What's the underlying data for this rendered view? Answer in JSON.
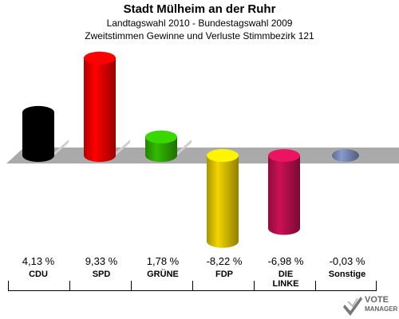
{
  "header": {
    "title": "Stadt Mülheim an der Ruhr",
    "subtitle1": "Landtagswahl 2010 - Bundestagswahl 2009",
    "subtitle2": "Zweitstimmen Gewinne und Verluste Stimmbezirk 121"
  },
  "chart_data": {
    "type": "bar",
    "categories": [
      "CDU",
      "SPD",
      "GRÜNE",
      "FDP",
      "DIE LINKE",
      "Sonstige"
    ],
    "values": [
      4.13,
      9.33,
      1.78,
      -8.22,
      -6.98,
      -0.03
    ],
    "value_labels": [
      "4,13 %",
      "9,33 %",
      "1,78 %",
      "-8,22 %",
      "-6,98 %",
      "-0,03 %"
    ],
    "colors": [
      "#000000",
      "#ff0000",
      "#33bb00",
      "#f2d500",
      "#cc1155",
      "#8899cc"
    ],
    "ylim": [
      -10,
      10
    ],
    "grid": false,
    "legend": "none"
  },
  "labels": {
    "party1": "CDU",
    "party2": "SPD",
    "party3": "GRÜNE",
    "party4": "FDP",
    "party5_line1": "DIE",
    "party5_line2": "LINKE",
    "party6": "Sonstige"
  },
  "logo": {
    "line1": "VOTE",
    "line2": "MANAGER"
  }
}
